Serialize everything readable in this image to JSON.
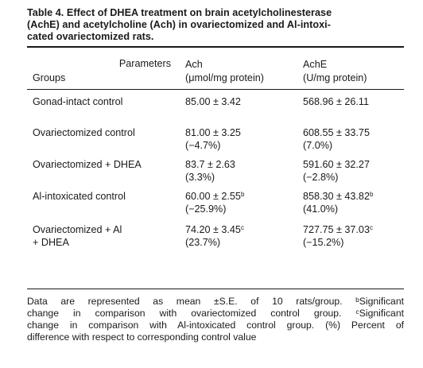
{
  "table": {
    "title_lines": [
      "Table 4. Effect of DHEA treatment on brain acetylcholinesterase",
      "(AchE) and acetylcholine (Ach) in ovariectomized and Al-intoxi-",
      "cated ovariectomized rats."
    ],
    "header": {
      "parameters": "Parameters",
      "groups": "Groups",
      "col1": [
        "Ach",
        "(μmol/mg protein)"
      ],
      "col2": [
        "AchE",
        "(U/mg protein)"
      ]
    },
    "rows": [
      {
        "group": [
          "Gonad-intact control"
        ],
        "ach": "85.00 ± 3.42",
        "ach_sup": "",
        "ach_pct": "",
        "ache": "568.96 ± 26.11",
        "ache_sup": "",
        "ache_pct": ""
      },
      {
        "group": [
          "Ovariectomized control"
        ],
        "ach": "81.00 ± 3.25",
        "ach_sup": "",
        "ach_pct": "(−4.7%)",
        "ache": "608.55 ± 33.75",
        "ache_sup": "",
        "ache_pct": "(7.0%)"
      },
      {
        "group": [
          "Ovariectomized + DHEA"
        ],
        "ach": "83.7 ± 2.63",
        "ach_sup": "",
        "ach_pct": "(3.3%)",
        "ache": "591.60 ± 32.27",
        "ache_sup": "",
        "ache_pct": "(−2.8%)"
      },
      {
        "group": [
          "Al-intoxicated control"
        ],
        "ach": "60.00 ± 2.55",
        "ach_sup": "b",
        "ach_pct": "(−25.9%)",
        "ache": "858.30 ± 43.82",
        "ache_sup": "b",
        "ache_pct": "(41.0%)"
      },
      {
        "group": [
          "Ovariectomized + Al",
          " + DHEA"
        ],
        "ach": "74.20 ± 3.45",
        "ach_sup": "c",
        "ach_pct": "(23.7%)",
        "ache": "727.75 ± 37.03",
        "ache_sup": "c",
        "ache_pct": "(−15.2%)"
      }
    ],
    "footnote_lines": [
      "Data are represented as mean ±S.E. of 10 rats/group. ᵇSignificant",
      "change in comparison with ovariectomized control group. ᶜSignificant",
      "change in comparison with Al-intoxicated control group. (%) Percent of",
      "difference with respect to corresponding control value"
    ]
  }
}
